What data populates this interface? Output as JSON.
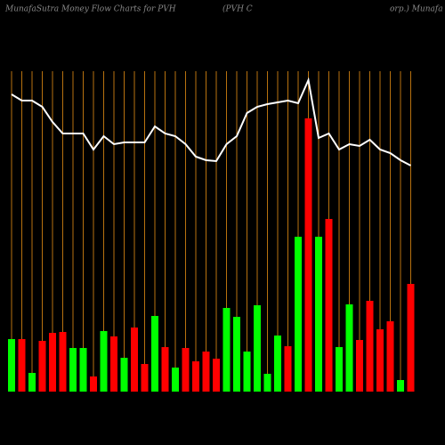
{
  "chart_data": {
    "type": "bar",
    "title": "MunafaSutra  Money Flow  Charts for PVH",
    "subtitle": [
      "(PVH C",
      "orp.) Munafa"
    ],
    "categories": [
      null,
      null,
      null,
      null,
      null,
      null,
      null,
      null,
      null,
      null,
      null,
      null,
      null,
      null,
      null,
      null,
      null,
      null,
      null,
      null,
      null,
      null,
      null,
      null,
      null,
      null,
      null,
      null,
      null,
      null,
      null,
      null,
      null,
      null,
      null,
      null,
      null,
      null,
      null,
      null
    ],
    "values": [
      59,
      59,
      21,
      57,
      66,
      67,
      49,
      49,
      17,
      68,
      62,
      38,
      72,
      31,
      85,
      50,
      27,
      49,
      34,
      45,
      37,
      94,
      84,
      45,
      97,
      20,
      63,
      51,
      174,
      307,
      174,
      194,
      50,
      98,
      58,
      102,
      70,
      79,
      13,
      121
    ],
    "colors": [
      "#00ff00",
      "#ff0000",
      "#00ff00",
      "#ff0000",
      "#ff0000",
      "#ff0000",
      "#00ff00",
      "#00ff00",
      "#ff0000",
      "#00ff00",
      "#ff0000",
      "#00ff00",
      "#ff0000",
      "#ff0000",
      "#00ff00",
      "#ff0000",
      "#00ff00",
      "#ff0000",
      "#ff0000",
      "#ff0000",
      "#ff0000",
      "#00ff00",
      "#00ff00",
      "#00ff00",
      "#00ff00",
      "#00ff00",
      "#00ff00",
      "#ff0000",
      "#00ff00",
      "#ff0000",
      "#00ff00",
      "#ff0000",
      "#00ff00",
      "#00ff00",
      "#ff0000",
      "#ff0000",
      "#ff0000",
      "#ff0000",
      "#00ff00",
      "#ff0000"
    ],
    "line_values": [
      334,
      327,
      327,
      320,
      303,
      290,
      290,
      290,
      272,
      287,
      278,
      280,
      280,
      280,
      298,
      290,
      287,
      278,
      264,
      260,
      259,
      278,
      287,
      313,
      320,
      323,
      325,
      327,
      324,
      350,
      285,
      290,
      272,
      278,
      276,
      283,
      272,
      268,
      260,
      254
    ],
    "line_color": "#ffffff",
    "grid_color": "#b8720f",
    "ylim": [
      0,
      360
    ]
  }
}
